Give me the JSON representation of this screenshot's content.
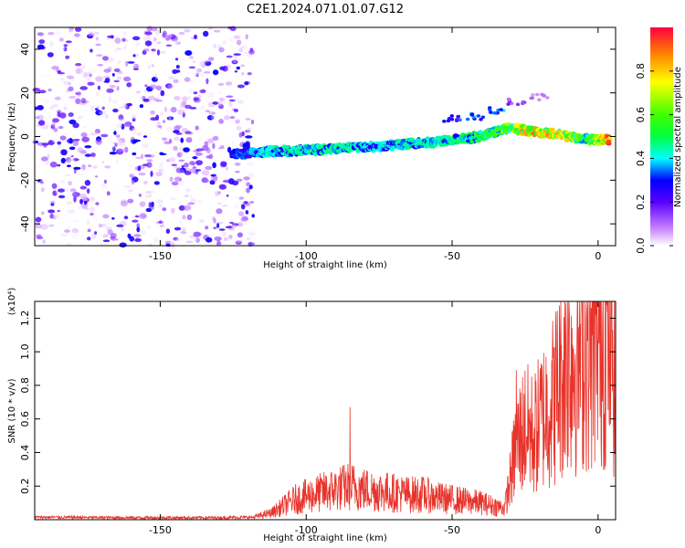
{
  "title": "C2E1.2024.071.01.07.G12",
  "chart_data": [
    {
      "type": "heatmap",
      "xlabel": "Height of straight line (km)",
      "ylabel": "Frequency (Hz)",
      "xlim": [
        -193,
        6
      ],
      "ylim": [
        -50,
        50
      ],
      "xticks": [
        -150,
        -100,
        -50,
        0
      ],
      "yticks": [
        -40,
        -20,
        0,
        20,
        40
      ],
      "colorbar": {
        "label": "Normalized spectral amplitude",
        "range": [
          0,
          1
        ],
        "ticks": [
          "0.0",
          "0.2",
          "0.4",
          "0.6",
          "0.8"
        ],
        "tick_values": [
          0,
          0.2,
          0.4,
          0.6,
          0.8
        ]
      },
      "ridge": [
        {
          "x": -125,
          "f": -8.0,
          "amp": 0.3
        },
        {
          "x": -115,
          "f": -7.0,
          "amp": 0.4
        },
        {
          "x": -105,
          "f": -6.5,
          "amp": 0.45
        },
        {
          "x": -95,
          "f": -6.0,
          "amp": 0.45
        },
        {
          "x": -85,
          "f": -5.0,
          "amp": 0.45
        },
        {
          "x": -75,
          "f": -4.5,
          "amp": 0.4
        },
        {
          "x": -65,
          "f": -3.5,
          "amp": 0.45
        },
        {
          "x": -55,
          "f": -2.5,
          "amp": 0.45
        },
        {
          "x": -45,
          "f": -1.0,
          "amp": 0.5
        },
        {
          "x": -38,
          "f": 1.0,
          "amp": 0.55
        },
        {
          "x": -30,
          "f": 4.0,
          "amp": 0.65
        },
        {
          "x": -25,
          "f": 3.0,
          "amp": 0.85
        },
        {
          "x": -20,
          "f": 1.5,
          "amp": 0.85
        },
        {
          "x": -15,
          "f": 1.5,
          "amp": 0.8
        },
        {
          "x": -10,
          "f": 0.0,
          "amp": 0.8
        },
        {
          "x": -5,
          "f": -1.0,
          "amp": 0.55
        },
        {
          "x": 0,
          "f": -1.5,
          "amp": 0.7
        },
        {
          "x": 4,
          "f": -1.5,
          "amp": 0.95
        }
      ],
      "upper_branch": [
        {
          "x": -50,
          "f": 8.0,
          "amp": 0.3
        },
        {
          "x": -42,
          "f": 9.0,
          "amp": 0.35
        },
        {
          "x": -35,
          "f": 12.0,
          "amp": 0.35
        },
        {
          "x": -28,
          "f": 16.0,
          "amp": 0.15
        },
        {
          "x": -20,
          "f": 18.0,
          "amp": 0.1
        }
      ],
      "noise_region": {
        "x": [
          -193,
          -118
        ],
        "f": [
          -50,
          50
        ],
        "amp_max": 0.3
      }
    },
    {
      "type": "line",
      "xlabel": "Height of straight line (km)",
      "ylabel": "SNR (10 * v/v)",
      "y_multiplier": "(x10⁴)",
      "xlim": [
        -193,
        6
      ],
      "ylim": [
        0,
        1.3
      ],
      "xticks": [
        -150,
        -100,
        -50,
        0
      ],
      "yticks": [
        "0.2",
        "0.4",
        "0.6",
        "0.8",
        "1.0",
        "1.2"
      ],
      "ytick_values": [
        0.2,
        0.4,
        0.6,
        0.8,
        1.0,
        1.2
      ],
      "color": "#e8332a",
      "series": {
        "x": [
          -193,
          -160,
          -130,
          -118,
          -112,
          -108,
          -104,
          -100,
          -95,
          -90,
          -85,
          -80,
          -75,
          -70,
          -65,
          -60,
          -55,
          -50,
          -45,
          -40,
          -35,
          -32,
          -30,
          -28,
          -25,
          -22,
          -20,
          -18,
          -15,
          -12,
          -10,
          -8,
          -5,
          -2,
          0,
          2,
          4,
          6
        ],
        "mean": [
          0.015,
          0.012,
          0.012,
          0.015,
          0.04,
          0.08,
          0.12,
          0.14,
          0.16,
          0.18,
          0.2,
          0.18,
          0.17,
          0.16,
          0.15,
          0.15,
          0.13,
          0.12,
          0.11,
          0.1,
          0.08,
          0.07,
          0.25,
          0.45,
          0.55,
          0.5,
          0.58,
          0.65,
          0.72,
          0.9,
          0.98,
          0.95,
          1.05,
          1.05,
          1.1,
          1.12,
          1.1,
          0.9
        ],
        "peaks": [
          {
            "x": -85,
            "y": 0.67
          },
          {
            "x": -28,
            "y": 0.89
          },
          {
            "x": -11,
            "y": 1.29
          },
          {
            "x": 3,
            "y": 1.28
          }
        ]
      }
    }
  ]
}
